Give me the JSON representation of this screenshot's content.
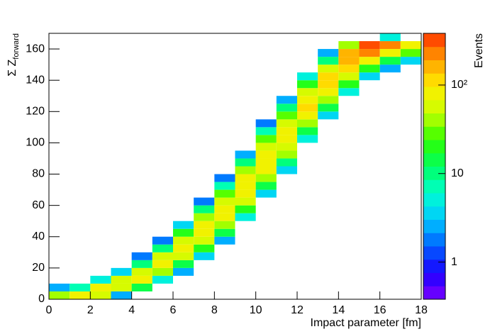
{
  "chart_data": {
    "type": "heatmap",
    "xlabel": "Impact parameter [fm]",
    "ylabel": "Σ Z",
    "ylabel_sub": "forward",
    "zlabel": "Events",
    "xlim": [
      0,
      18
    ],
    "xticks": [
      0,
      2,
      4,
      6,
      8,
      10,
      12,
      14,
      16,
      18
    ],
    "ylim": [
      0,
      170
    ],
    "yticks": [
      0,
      20,
      40,
      60,
      80,
      100,
      120,
      140,
      160
    ],
    "zlim": [
      0.38,
      384
    ],
    "zlog": true,
    "zticks": [
      1,
      10,
      {
        "value": 100,
        "label": "10²"
      }
    ],
    "palette": [
      "#7f00ff",
      "#1a00ff",
      "#0060ff",
      "#00c8ff",
      "#00ffd0",
      "#00ff60",
      "#30ff00",
      "#c8ff00",
      "#ffee00",
      "#ffa000",
      "#ff3000"
    ],
    "columns": [
      {
        "xbin": [
          0,
          1
        ],
        "ybins": [
          0,
          5,
          10
        ],
        "z": [
          40,
          3
        ]
      },
      {
        "xbin": [
          1,
          2
        ],
        "ybins": [
          0,
          5,
          10
        ],
        "z": [
          80,
          8
        ]
      },
      {
        "xbin": [
          2,
          3
        ],
        "ybins": [
          0,
          5,
          10,
          15
        ],
        "z": [
          60,
          90,
          5
        ]
      },
      {
        "xbin": [
          3,
          4
        ],
        "ybins": [
          0,
          5,
          10,
          15,
          20
        ],
        "z": [
          3,
          60,
          50,
          4
        ]
      },
      {
        "xbin": [
          4,
          5
        ],
        "ybins": [
          5,
          10,
          15,
          20,
          25,
          30
        ],
        "z": [
          15,
          70,
          60,
          10,
          2
        ]
      },
      {
        "xbin": [
          5,
          6
        ],
        "ybins": [
          10,
          15,
          20,
          25,
          30,
          35,
          40
        ],
        "z": [
          5,
          40,
          80,
          50,
          10,
          2
        ]
      },
      {
        "xbin": [
          6,
          7
        ],
        "ybins": [
          15,
          20,
          25,
          30,
          35,
          40,
          45,
          50
        ],
        "z": [
          3,
          15,
          60,
          80,
          60,
          20,
          4
        ]
      },
      {
        "xbin": [
          7,
          8
        ],
        "ybins": [
          25,
          30,
          35,
          40,
          45,
          50,
          55,
          60,
          65
        ],
        "z": [
          4,
          20,
          60,
          85,
          70,
          35,
          10,
          2
        ]
      },
      {
        "xbin": [
          8,
          9
        ],
        "ybins": [
          35,
          40,
          45,
          50,
          55,
          60,
          65,
          70,
          75,
          80
        ],
        "z": [
          3,
          15,
          45,
          80,
          85,
          60,
          25,
          8,
          2
        ]
      },
      {
        "xbin": [
          9,
          10
        ],
        "ybins": [
          50,
          55,
          60,
          65,
          70,
          75,
          80,
          85,
          90,
          95
        ],
        "z": [
          5,
          20,
          50,
          80,
          90,
          70,
          40,
          12,
          3
        ]
      },
      {
        "xbin": [
          10,
          11
        ],
        "ybins": [
          65,
          70,
          75,
          80,
          85,
          90,
          95,
          100,
          105,
          110,
          115
        ],
        "z": [
          4,
          15,
          40,
          75,
          90,
          85,
          55,
          25,
          8,
          2
        ]
      },
      {
        "xbin": [
          11,
          12
        ],
        "ybins": [
          80,
          85,
          90,
          95,
          100,
          105,
          110,
          115,
          120,
          125,
          130
        ],
        "z": [
          4,
          12,
          35,
          65,
          90,
          85,
          60,
          30,
          10,
          3
        ]
      },
      {
        "xbin": [
          12,
          13
        ],
        "ybins": [
          100,
          105,
          110,
          115,
          120,
          125,
          130,
          135,
          140,
          145
        ],
        "z": [
          5,
          15,
          40,
          75,
          100,
          90,
          55,
          20,
          5
        ]
      },
      {
        "xbin": [
          13,
          14
        ],
        "ybins": [
          115,
          120,
          125,
          130,
          135,
          140,
          145,
          150,
          155,
          160
        ],
        "z": [
          4,
          15,
          45,
          90,
          120,
          100,
          50,
          12,
          3
        ]
      },
      {
        "xbin": [
          14,
          15
        ],
        "ybins": [
          130,
          135,
          140,
          145,
          150,
          155,
          160,
          165
        ],
        "z": [
          5,
          20,
          60,
          130,
          180,
          150,
          40
        ]
      },
      {
        "xbin": [
          15,
          16
        ],
        "ybins": [
          140,
          145,
          150,
          155,
          160,
          165
        ],
        "z": [
          4,
          20,
          80,
          250,
          300
        ]
      },
      {
        "xbin": [
          16,
          17
        ],
        "ybins": [
          145,
          150,
          155,
          160,
          165,
          170
        ],
        "z": [
          3,
          15,
          80,
          250,
          5
        ]
      },
      {
        "xbin": [
          17,
          18
        ],
        "ybins": [
          150,
          155,
          160,
          165
        ],
        "z": [
          4,
          30,
          80
        ]
      }
    ]
  }
}
